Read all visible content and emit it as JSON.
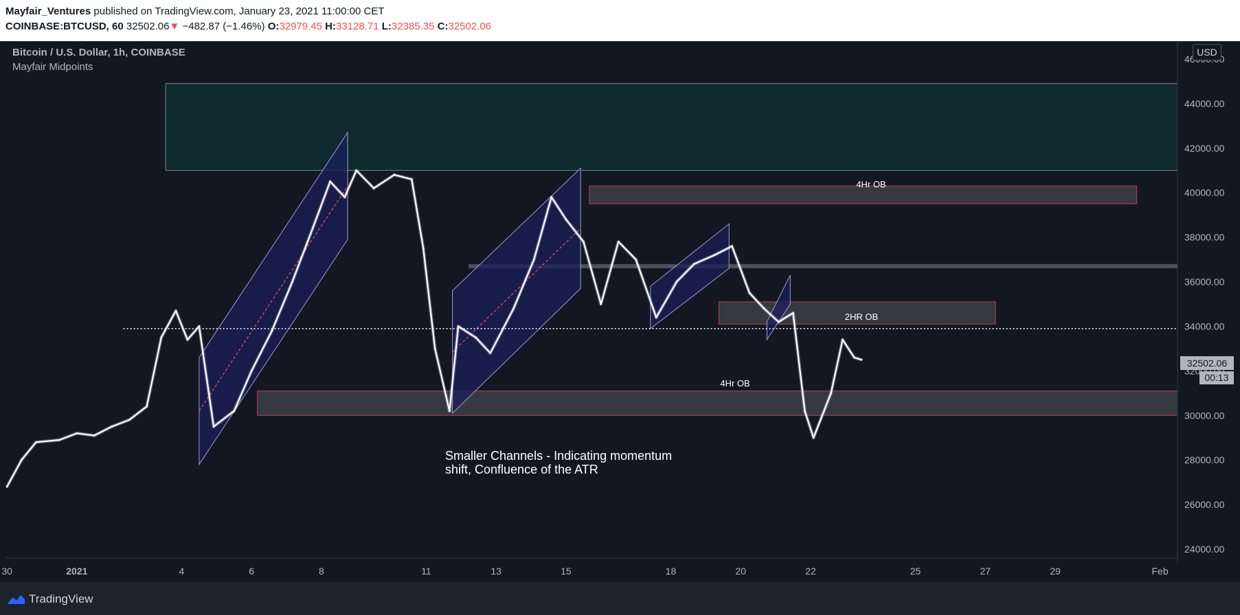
{
  "header": {
    "author": "Mayfair_Ventures",
    "published_text": "published on TradingView.com, January 23, 2021 11:00:00 CET",
    "symbol": "COINBASE:BTCUSD, 60",
    "last_price": "32502.06",
    "change_arrow": "▼",
    "change": "−482.87 (−1.46%)",
    "o_label": "O:",
    "o_value": "32979.45",
    "h_label": "H:",
    "h_value": "33128.71",
    "l_label": "L:",
    "l_value": "32385.35",
    "c_label": "C:",
    "c_value": "32502.06"
  },
  "legend": {
    "title": "Bitcoin / U.S. Dollar, 1h, COINBASE",
    "indicator": "Mayfair Midpoints"
  },
  "currency": "USD",
  "price_tag": "32502.06",
  "countdown": "00:13",
  "annotation": "Smaller Channels - Indicating momentum\nshift, Confluence of the ATR",
  "zone_labels": {
    "ob_4hr_upper": "4Hr OB",
    "ob_2hr": "2HR OB",
    "ob_4hr_lower": "4Hr OB"
  },
  "footer": {
    "brand": "TradingView"
  },
  "colors": {
    "background": "#131722",
    "price_line": "#ffffff",
    "down": "#ef5350",
    "channel_fill": "#1a1f5a",
    "zone_fill": "#3a3c42",
    "zone_border": "#c0404a",
    "premium_zone": "#0f2a2e"
  },
  "chart_data": {
    "type": "line",
    "x_tick_labels": [
      "30",
      "2021",
      "4",
      "6",
      "8",
      "11",
      "13",
      "15",
      "18",
      "20",
      "22",
      "25",
      "27",
      "29",
      "Feb"
    ],
    "y_tick_labels": [
      "46000.00",
      "44000.00",
      "42000.00",
      "40000.00",
      "38000.00",
      "36000.00",
      "34000.00",
      "32000.00",
      "30000.00",
      "28000.00",
      "26000.00",
      "24000.00"
    ],
    "ylim": [
      23600,
      46800
    ],
    "xlim": [
      "2020-12-29 23:00",
      "2021-02-01 12:00"
    ],
    "series": [
      {
        "x": [
          "2020-12-30 00:00",
          "2020-12-30 10:00",
          "2020-12-30 20:00",
          "2020-12-31 12:00",
          "2021-01-01 00:00",
          "2021-01-01 12:00",
          "2021-01-02 00:00",
          "2021-01-02 12:00",
          "2021-01-03 00:00",
          "2021-01-03 10:00",
          "2021-01-03 20:00",
          "2021-01-04 04:00",
          "2021-01-04 12:00",
          "2021-01-04 22:00",
          "2021-01-05 12:00",
          "2021-01-06 00:00",
          "2021-01-06 14:00",
          "2021-01-07 04:00",
          "2021-01-07 18:00",
          "2021-01-08 06:00",
          "2021-01-08 16:00",
          "2021-01-09 00:00",
          "2021-01-09 12:00",
          "2021-01-10 02:00",
          "2021-01-10 14:00",
          "2021-01-10 22:00",
          "2021-01-11 06:00",
          "2021-01-11 16:00",
          "2021-01-11 22:00",
          "2021-01-12 10:00",
          "2021-01-12 20:00",
          "2021-01-13 12:00",
          "2021-01-14 02:00",
          "2021-01-14 14:00",
          "2021-01-15 00:00",
          "2021-01-15 12:00",
          "2021-01-16 00:00",
          "2021-01-16 12:00",
          "2021-01-17 00:00",
          "2021-01-17 14:00",
          "2021-01-18 04:00",
          "2021-01-18 16:00",
          "2021-01-19 06:00",
          "2021-01-19 18:00",
          "2021-01-20 06:00",
          "2021-01-20 16:00",
          "2021-01-21 02:00",
          "2021-01-21 12:00",
          "2021-01-21 20:00",
          "2021-01-22 02:00",
          "2021-01-22 14:00",
          "2021-01-22 22:00",
          "2021-01-23 06:00",
          "2021-01-23 11:00"
        ],
        "values": [
          26800,
          28000,
          28800,
          28900,
          29200,
          29100,
          29500,
          29800,
          30400,
          33500,
          34700,
          33400,
          34000,
          29500,
          30200,
          32000,
          33800,
          36000,
          38400,
          40500,
          39800,
          41000,
          40200,
          40800,
          40600,
          37500,
          33000,
          30200,
          34000,
          33500,
          32800,
          34800,
          37000,
          39800,
          38800,
          37800,
          35000,
          37800,
          37000,
          34400,
          36000,
          36800,
          37200,
          37600,
          35500,
          34800,
          34200,
          34600,
          30200,
          29000,
          31000,
          33400,
          32600,
          32500
        ]
      }
    ],
    "overlays": {
      "premium_zone": [
        41000,
        44900
      ],
      "ob_4hr_upper": [
        39500,
        40300
      ],
      "ob_2hr": [
        34100,
        35100
      ],
      "ob_4hr_lower": [
        30000,
        31100
      ],
      "resistance_band": 36700,
      "dotted_level": 33900
    }
  }
}
